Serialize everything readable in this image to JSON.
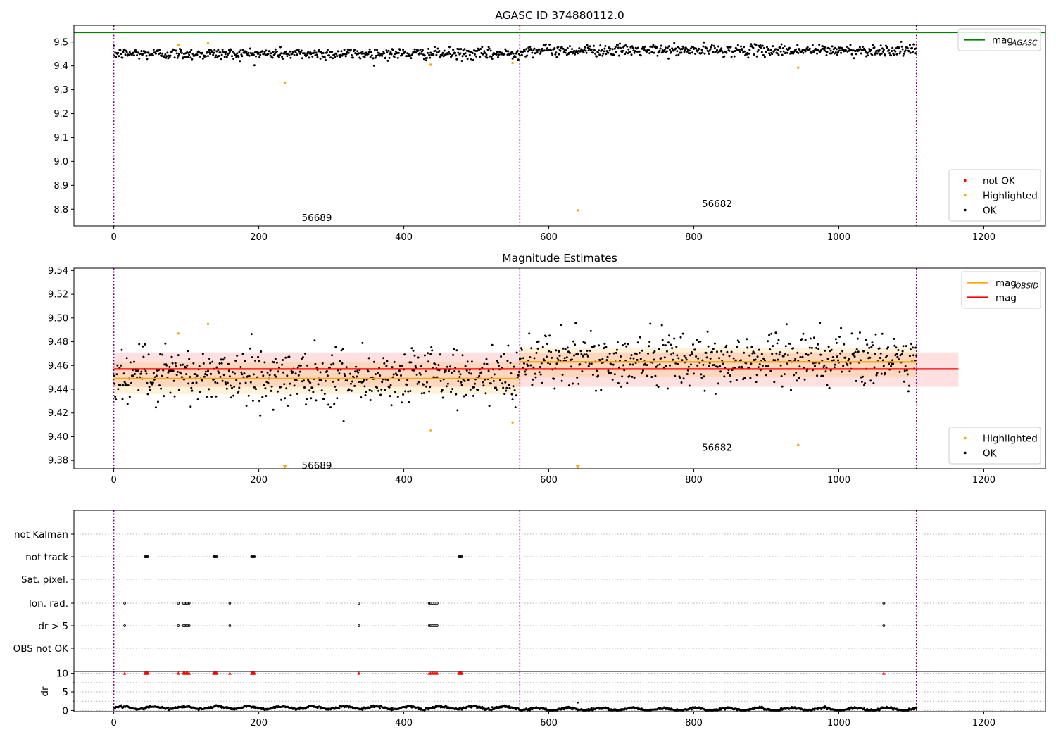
{
  "chart_data": [
    {
      "type": "scatter",
      "title": "AGASC ID 374880112.0",
      "xlim": [
        -55,
        1285
      ],
      "ylim": [
        8.73,
        9.57
      ],
      "xticks": [
        0,
        200,
        400,
        600,
        800,
        1000,
        1200
      ],
      "yticks": [
        8.8,
        8.9,
        9.0,
        9.1,
        9.2,
        9.3,
        9.4,
        9.5
      ],
      "ytick_labels": [
        "8.8",
        "8.9",
        "9.0",
        "9.1",
        "9.2",
        "9.3",
        "9.4",
        "9.5"
      ],
      "vlines": [
        0,
        560,
        1107
      ],
      "hlines": [
        {
          "name": "mag_AGASC",
          "y": 9.54,
          "x": [
            -55,
            1285
          ],
          "color": "#008000"
        }
      ],
      "obsid_labels": [
        {
          "text": "56689",
          "x": 280,
          "y": 8.765
        },
        {
          "text": "56682",
          "x": 832,
          "y": 8.825
        }
      ],
      "series": [
        {
          "name": "OK",
          "color": "#000000",
          "segments": [
            {
              "x": [
                0,
                559
              ],
              "mean": 9.451,
              "std": 0.012
            },
            {
              "x": [
                560,
                1107
              ],
              "mean": 9.465,
              "std": 0.012
            }
          ]
        },
        {
          "name": "Highlighted",
          "color": "#ffa500",
          "points": [
            [
              89,
              9.487
            ],
            [
              130,
              9.495
            ],
            [
              236,
              9.33
            ],
            [
              437,
              9.405
            ],
            [
              550,
              9.412
            ],
            [
              640,
              8.795
            ],
            [
              944,
              9.393
            ]
          ]
        }
      ],
      "legends": [
        {
          "position": "upper-right",
          "entries": [
            {
              "label": "mag",
              "sub": "AGASC",
              "style": "line",
              "color": "#008000"
            }
          ]
        },
        {
          "position": "lower-right",
          "entries": [
            {
              "label": "not OK",
              "style": "dot",
              "color": "#ff0000"
            },
            {
              "label": "Highlighted",
              "style": "dot",
              "color": "#ffa500"
            },
            {
              "label": "OK",
              "style": "dot",
              "color": "#000000"
            }
          ]
        }
      ]
    },
    {
      "type": "scatter",
      "title": "Magnitude Estimates",
      "xlim": [
        -55,
        1285
      ],
      "ylim": [
        9.373,
        9.542
      ],
      "xticks": [
        0,
        200,
        400,
        600,
        800,
        1000,
        1200
      ],
      "yticks": [
        9.38,
        9.4,
        9.42,
        9.44,
        9.46,
        9.48,
        9.5,
        9.52,
        9.54
      ],
      "ytick_labels": [
        "9.38",
        "9.40",
        "9.42",
        "9.44",
        "9.46",
        "9.48",
        "9.50",
        "9.52",
        "9.54"
      ],
      "vlines": [
        0,
        560,
        1107
      ],
      "bands": [
        {
          "name": "mag",
          "x": [
            0,
            1165
          ],
          "y": [
            9.442,
            9.471
          ],
          "color": "#ff0000",
          "opacity": 0.12
        },
        {
          "name": "mag_OBSID 56689",
          "x": [
            0,
            559
          ],
          "y": [
            9.436,
            9.463
          ],
          "color": "#ffa500",
          "opacity": 0.15
        },
        {
          "name": "mag_OBSID 56682",
          "x": [
            560,
            1107
          ],
          "y": [
            9.45,
            9.475
          ],
          "color": "#ffa500",
          "opacity": 0.15
        }
      ],
      "lines": [
        {
          "name": "mag",
          "color": "#ff0000",
          "segments": [
            {
              "x": [
                0,
                1165
              ],
              "y": 9.457
            }
          ]
        },
        {
          "name": "mag_OBSID",
          "color": "#ffa500",
          "segments": [
            {
              "x": [
                0,
                559
              ],
              "y": 9.449
            },
            {
              "x": [
                560,
                1107
              ],
              "y": 9.463
            }
          ]
        }
      ],
      "obsid_labels": [
        {
          "text": "56689",
          "x": 280,
          "y": 9.376
        },
        {
          "text": "56682",
          "x": 832,
          "y": 9.391
        }
      ],
      "series": [
        {
          "name": "OK",
          "color": "#000000",
          "segments": [
            {
              "x": [
                0,
                559
              ],
              "mean": 9.451,
              "std": 0.012
            },
            {
              "x": [
                560,
                1107
              ],
              "mean": 9.465,
              "std": 0.012
            }
          ]
        },
        {
          "name": "Highlighted",
          "color": "#ffa500",
          "points": [
            [
              89,
              9.487
            ],
            [
              130,
              9.495
            ],
            [
              437,
              9.405
            ],
            [
              550,
              9.412
            ],
            [
              944,
              9.393
            ]
          ]
        },
        {
          "name": "Highlighted (off-scale)",
          "color": "#ffa500",
          "marker": "triangle-down",
          "points": [
            [
              236,
              9.373
            ],
            [
              640,
              9.373
            ]
          ]
        }
      ],
      "legends": [
        {
          "position": "upper-right",
          "entries": [
            {
              "label": "mag",
              "sub": "OBSID",
              "style": "line",
              "color": "#ffa500"
            },
            {
              "label": "mag",
              "style": "line",
              "color": "#ff0000"
            }
          ]
        },
        {
          "position": "lower-right",
          "entries": [
            {
              "label": "Highlighted",
              "style": "dot",
              "color": "#ffa500"
            },
            {
              "label": "OK",
              "style": "dot",
              "color": "#000000"
            }
          ]
        }
      ]
    },
    {
      "type": "scatter",
      "title": "",
      "xlim": [
        -55,
        1285
      ],
      "categories": [
        "not Kalman",
        "not track",
        "Sat. pixel.",
        "Ion. rad.",
        "dr > 5",
        "OBS not OK"
      ],
      "vlines": [
        0,
        560,
        1107
      ],
      "flag_points": {
        "not track": [
          43,
          44,
          45,
          46,
          47,
          138,
          139,
          140,
          141,
          142,
          190,
          191,
          192,
          193,
          194,
          476,
          477,
          478,
          479,
          480
        ],
        "Ion. rad.": [
          15,
          89,
          96,
          98,
          100,
          102,
          104,
          160,
          338,
          435,
          437,
          440,
          443,
          446,
          1062
        ],
        "dr > 5": [
          15,
          89,
          96,
          98,
          100,
          102,
          104,
          160,
          338,
          435,
          437,
          440,
          443,
          446,
          1062
        ]
      }
    },
    {
      "type": "scatter",
      "title": "",
      "ylabel": "dr",
      "xlim": [
        -55,
        1285
      ],
      "ylim": [
        -0.3,
        10.5
      ],
      "xticks": [
        0,
        200,
        400,
        600,
        800,
        1000,
        1200
      ],
      "yticks": [
        0,
        5,
        10
      ],
      "ytick_labels": [
        "0",
        "5",
        "10"
      ],
      "vlines": [
        0,
        560,
        1107
      ],
      "series": [
        {
          "name": "OK",
          "color": "#000000",
          "x_range": [
            0,
            1107
          ],
          "y_range": [
            0.1,
            1.4
          ]
        },
        {
          "name": "not OK",
          "color": "#ff0000",
          "marker": "triangle-up",
          "y": 10,
          "x": [
            15,
            43,
            44,
            45,
            46,
            47,
            89,
            96,
            98,
            100,
            102,
            104,
            138,
            139,
            140,
            141,
            142,
            160,
            190,
            191,
            192,
            193,
            194,
            338,
            435,
            437,
            440,
            443,
            446,
            476,
            477,
            478,
            479,
            480,
            1062
          ]
        },
        {
          "name": "outlier",
          "color": "#000000",
          "points": [
            [
              640,
              2.1
            ]
          ]
        }
      ]
    }
  ]
}
